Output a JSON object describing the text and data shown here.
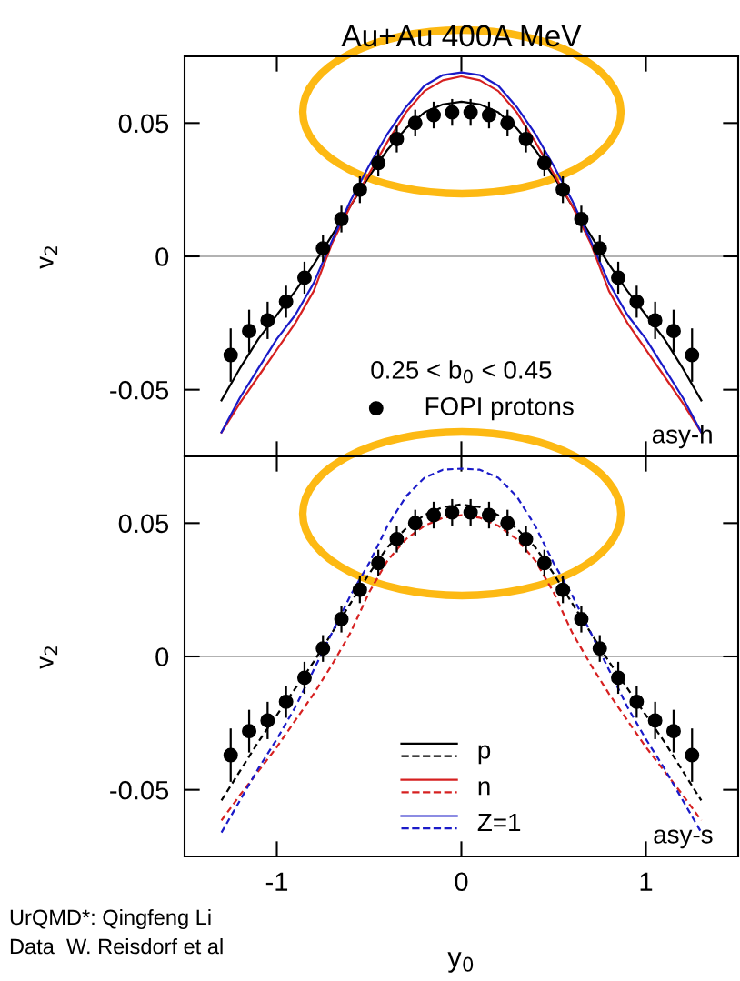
{
  "chart_data": [
    {
      "type": "line",
      "title": "Au+Au 400A MeV",
      "ylabel": "v$_{2}$",
      "xlim": [
        -1.5,
        1.5
      ],
      "ylim": [
        -0.075,
        0.075
      ],
      "xticks": [
        {
          "value": -1,
          "label": null
        },
        {
          "value": 0,
          "label": null
        },
        {
          "value": 1,
          "label": null
        }
      ],
      "yticks": [
        -0.05,
        0,
        0.05
      ],
      "tick_labels": "y",
      "grid": false,
      "legend": "bottom",
      "legend_title": "0.25 < b$_{0}$ < 0.45",
      "ref_lines": [
        {
          "axis": "y",
          "value": 0,
          "color": "#999999"
        }
      ],
      "annotations": [
        "asy-h"
      ],
      "series": [
        {
          "color": "#000000",
          "line_style": "solid",
          "x": [
            -1.3,
            -1.2,
            -1.1,
            -1.0,
            -0.9,
            -0.8,
            -0.7,
            -0.6,
            -0.5,
            -0.4,
            -0.3,
            -0.2,
            -0.1,
            0,
            0.1,
            0.2,
            0.3,
            0.4,
            0.5,
            0.6,
            0.7,
            0.8,
            0.9,
            1.0,
            1.1,
            1.2,
            1.3
          ],
          "values": [
            -0.054,
            -0.042,
            -0.031,
            -0.022,
            -0.013,
            -0.003,
            0.008,
            0.019,
            0.03,
            0.04,
            0.048,
            0.054,
            0.057,
            0.058,
            0.057,
            0.054,
            0.048,
            0.04,
            0.03,
            0.019,
            0.008,
            -0.003,
            -0.013,
            -0.022,
            -0.031,
            -0.042,
            -0.054
          ]
        },
        {
          "color": "#d62020",
          "line_style": "solid",
          "x": [
            -1.3,
            -1.2,
            -1.1,
            -1.0,
            -0.9,
            -0.8,
            -0.7,
            -0.6,
            -0.5,
            -0.4,
            -0.3,
            -0.2,
            -0.1,
            0,
            0.1,
            0.2,
            0.3,
            0.4,
            0.5,
            0.6,
            0.7,
            0.8,
            0.9,
            1.0,
            1.1,
            1.2,
            1.3
          ],
          "values": [
            -0.066,
            -0.055,
            -0.045,
            -0.035,
            -0.025,
            -0.013,
            0.005,
            0.019,
            0.031,
            0.043,
            0.054,
            0.062,
            0.066,
            0.0675,
            0.066,
            0.062,
            0.054,
            0.043,
            0.031,
            0.019,
            0.005,
            -0.013,
            -0.025,
            -0.035,
            -0.045,
            -0.055,
            -0.066
          ]
        },
        {
          "color": "#1a1ac8",
          "line_style": "solid",
          "x": [
            -1.3,
            -1.2,
            -1.1,
            -1.0,
            -0.9,
            -0.8,
            -0.7,
            -0.6,
            -0.5,
            -0.4,
            -0.3,
            -0.2,
            -0.1,
            0,
            0.1,
            0.2,
            0.3,
            0.4,
            0.5,
            0.6,
            0.7,
            0.8,
            0.9,
            1.0,
            1.1,
            1.2,
            1.3
          ],
          "values": [
            -0.066,
            -0.053,
            -0.042,
            -0.031,
            -0.022,
            -0.01,
            0.006,
            0.021,
            0.034,
            0.046,
            0.056,
            0.064,
            0.068,
            0.069,
            0.068,
            0.064,
            0.056,
            0.046,
            0.034,
            0.021,
            0.006,
            -0.01,
            -0.022,
            -0.031,
            -0.042,
            -0.053,
            -0.066
          ]
        },
        {
          "type": "scatter",
          "name": "FOPI protons",
          "color": "#000000",
          "marker": "circle",
          "x": [
            -1.25,
            -1.15,
            -1.05,
            -0.95,
            -0.85,
            -0.75,
            -0.65,
            -0.55,
            -0.45,
            -0.35,
            -0.25,
            -0.15,
            -0.05,
            0.05,
            0.15,
            0.25,
            0.35,
            0.45,
            0.55,
            0.65,
            0.75,
            0.85,
            0.95,
            1.05,
            1.15,
            1.25
          ],
          "values": [
            -0.037,
            -0.028,
            -0.024,
            -0.017,
            -0.008,
            0.003,
            0.014,
            0.025,
            0.035,
            0.044,
            0.05,
            0.053,
            0.054,
            0.054,
            0.053,
            0.05,
            0.044,
            0.035,
            0.025,
            0.014,
            0.003,
            -0.008,
            -0.017,
            -0.024,
            -0.028,
            -0.037
          ],
          "errors": [
            0.01,
            0.008,
            0.007,
            0.006,
            0.006,
            0.005,
            0.005,
            0.005,
            0.005,
            0.005,
            0.005,
            0.005,
            0.005,
            0.005,
            0.005,
            0.005,
            0.005,
            0.005,
            0.005,
            0.005,
            0.005,
            0.006,
            0.006,
            0.007,
            0.008,
            0.01
          ]
        }
      ]
    },
    {
      "type": "line",
      "xlabel": "y$_{0}$",
      "ylabel": "v$_{2}$",
      "xlim": [
        -1.5,
        1.5
      ],
      "ylim": [
        -0.075,
        0.075
      ],
      "xticks": [
        -1,
        0,
        1
      ],
      "yticks": [
        -0.05,
        0,
        0.05
      ],
      "grid": false,
      "legend": "bottom",
      "ref_lines": [
        {
          "axis": "y",
          "value": 0,
          "color": "#999999"
        }
      ],
      "annotations": [
        "asy-s",
        "UrQMD*: Qingfeng Li",
        "Data  W. Reisdorf et al"
      ],
      "series": [
        {
          "name": "p",
          "color": "#000000",
          "line_style": "dashed",
          "x": [
            -1.3,
            -1.2,
            -1.1,
            -1.0,
            -0.9,
            -0.8,
            -0.7,
            -0.6,
            -0.5,
            -0.4,
            -0.3,
            -0.2,
            -0.1,
            0,
            0.1,
            0.2,
            0.3,
            0.4,
            0.5,
            0.6,
            0.7,
            0.8,
            0.9,
            1.0,
            1.1,
            1.2,
            1.3
          ],
          "values": [
            -0.054,
            -0.043,
            -0.032,
            -0.022,
            -0.012,
            -0.002,
            0.009,
            0.02,
            0.031,
            0.041,
            0.048,
            0.053,
            0.056,
            0.057,
            0.056,
            0.053,
            0.048,
            0.041,
            0.031,
            0.02,
            0.009,
            -0.002,
            -0.012,
            -0.022,
            -0.032,
            -0.043,
            -0.054
          ]
        },
        {
          "name": "n",
          "color": "#d62020",
          "line_style": "dashed",
          "x": [
            -1.3,
            -1.2,
            -1.1,
            -1.0,
            -0.9,
            -0.8,
            -0.7,
            -0.6,
            -0.5,
            -0.4,
            -0.3,
            -0.2,
            -0.1,
            0,
            0.1,
            0.2,
            0.3,
            0.4,
            0.5,
            0.6,
            0.7,
            0.8,
            0.9,
            1.0,
            1.1,
            1.2,
            1.3
          ],
          "values": [
            -0.0615,
            -0.052,
            -0.043,
            -0.034,
            -0.024,
            -0.014,
            -0.003,
            0.009,
            0.024,
            0.036,
            0.044,
            0.049,
            0.052,
            0.053,
            0.052,
            0.049,
            0.044,
            0.036,
            0.024,
            0.009,
            -0.003,
            -0.014,
            -0.024,
            -0.034,
            -0.043,
            -0.052,
            -0.0615
          ]
        },
        {
          "name": "Z=1",
          "color": "#1a1ac8",
          "line_style": "dashed",
          "x": [
            -1.3,
            -1.2,
            -1.1,
            -1.0,
            -0.9,
            -0.8,
            -0.7,
            -0.6,
            -0.5,
            -0.4,
            -0.3,
            -0.2,
            -0.1,
            0,
            0.1,
            0.2,
            0.3,
            0.4,
            0.5,
            0.6,
            0.7,
            0.8,
            0.9,
            1.0,
            1.1,
            1.2,
            1.3
          ],
          "values": [
            -0.066,
            -0.054,
            -0.042,
            -0.031,
            -0.019,
            -0.005,
            0.009,
            0.023,
            0.035,
            0.049,
            0.06,
            0.067,
            0.07,
            0.0704,
            0.07,
            0.067,
            0.06,
            0.049,
            0.035,
            0.023,
            0.009,
            -0.005,
            -0.019,
            -0.031,
            -0.042,
            -0.054,
            -0.066
          ]
        },
        {
          "type": "scatter",
          "color": "#000000",
          "marker": "circle",
          "x": [
            -1.25,
            -1.15,
            -1.05,
            -0.95,
            -0.85,
            -0.75,
            -0.65,
            -0.55,
            -0.45,
            -0.35,
            -0.25,
            -0.15,
            -0.05,
            0.05,
            0.15,
            0.25,
            0.35,
            0.45,
            0.55,
            0.65,
            0.75,
            0.85,
            0.95,
            1.05,
            1.15,
            1.25
          ],
          "values": [
            -0.037,
            -0.028,
            -0.024,
            -0.017,
            -0.008,
            0.003,
            0.014,
            0.025,
            0.035,
            0.044,
            0.05,
            0.053,
            0.054,
            0.054,
            0.053,
            0.05,
            0.044,
            0.035,
            0.025,
            0.014,
            0.003,
            -0.008,
            -0.017,
            -0.024,
            -0.028,
            -0.037
          ],
          "errors": [
            0.01,
            0.008,
            0.007,
            0.006,
            0.006,
            0.005,
            0.005,
            0.005,
            0.005,
            0.005,
            0.005,
            0.005,
            0.005,
            0.005,
            0.005,
            0.005,
            0.005,
            0.005,
            0.005,
            0.005,
            0.005,
            0.006,
            0.006,
            0.007,
            0.008,
            0.01
          ]
        }
      ]
    }
  ]
}
